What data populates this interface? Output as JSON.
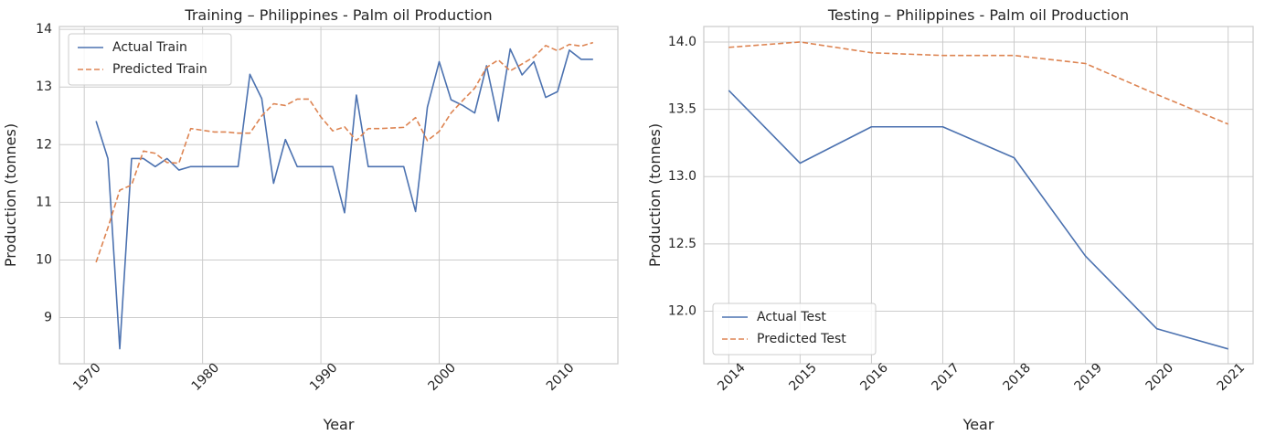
{
  "chart_data": [
    {
      "type": "line",
      "title": "Training – Philippines - Palm oil Production",
      "xlabel": "Year",
      "ylabel": "Production (tonnes)",
      "xlim": [
        1967.9,
        2015.1
      ],
      "ylim": [
        8.2,
        14.05
      ],
      "xticks": [
        1970,
        1980,
        1990,
        2000,
        2010
      ],
      "xtick_labels": [
        "1970",
        "1980",
        "1990",
        "2000",
        "2010"
      ],
      "xtick_rotation": 45,
      "yticks": [
        9,
        10,
        11,
        12,
        13,
        14
      ],
      "ytick_labels": [
        "9",
        "10",
        "11",
        "12",
        "13",
        "14"
      ],
      "grid": true,
      "legend_position": "top-left",
      "x": [
        1971,
        1972,
        1973,
        1974,
        1975,
        1976,
        1977,
        1978,
        1979,
        1980,
        1981,
        1982,
        1983,
        1984,
        1985,
        1986,
        1987,
        1988,
        1989,
        1990,
        1991,
        1992,
        1993,
        1994,
        1995,
        1996,
        1997,
        1998,
        1999,
        2000,
        2001,
        2002,
        2003,
        2004,
        2005,
        2006,
        2007,
        2008,
        2009,
        2010,
        2011,
        2012,
        2013
      ],
      "series": [
        {
          "name": "Actual Train",
          "color": "#4c72b0",
          "dash": "solid",
          "values": [
            12.41,
            11.76,
            8.46,
            11.76,
            11.76,
            11.62,
            11.76,
            11.56,
            11.62,
            11.62,
            11.62,
            11.62,
            11.62,
            13.22,
            12.8,
            11.33,
            12.09,
            11.62,
            11.62,
            11.62,
            11.62,
            10.82,
            12.86,
            11.62,
            11.62,
            11.62,
            11.62,
            10.84,
            12.65,
            13.44,
            12.78,
            12.68,
            12.55,
            13.37,
            12.41,
            13.66,
            13.21,
            13.44,
            12.82,
            12.92,
            13.64,
            13.48,
            13.48
          ]
        },
        {
          "name": "Predicted Train",
          "color": "#dd8452",
          "dash": "dashed",
          "values": [
            9.96,
            10.56,
            11.21,
            11.3,
            11.89,
            11.85,
            11.69,
            11.68,
            12.28,
            12.25,
            12.22,
            12.22,
            12.2,
            12.2,
            12.5,
            12.71,
            12.68,
            12.79,
            12.79,
            12.48,
            12.24,
            12.31,
            12.07,
            12.28,
            12.28,
            12.29,
            12.3,
            12.47,
            12.07,
            12.23,
            12.55,
            12.77,
            12.98,
            13.34,
            13.47,
            13.28,
            13.4,
            13.52,
            13.72,
            13.63,
            13.74,
            13.71,
            13.77
          ]
        }
      ]
    },
    {
      "type": "line",
      "title": "Testing – Philippines - Palm oil Production",
      "xlabel": "Year",
      "ylabel": "Production (tonnes)",
      "xlim": [
        2013.65,
        2021.35
      ],
      "ylim": [
        11.61,
        14.115
      ],
      "xticks": [
        2014,
        2015,
        2016,
        2017,
        2018,
        2019,
        2020,
        2021
      ],
      "xtick_labels": [
        "2014",
        "2015",
        "2016",
        "2017",
        "2018",
        "2019",
        "2020",
        "2021"
      ],
      "xtick_rotation": 45,
      "yticks": [
        12.0,
        12.5,
        13.0,
        13.5,
        14.0
      ],
      "ytick_labels": [
        "12.0",
        "12.5",
        "13.0",
        "13.5",
        "14.0"
      ],
      "grid": true,
      "legend_position": "bottom-left",
      "x": [
        2014,
        2015,
        2016,
        2017,
        2018,
        2019,
        2020,
        2021
      ],
      "series": [
        {
          "name": "Actual Test",
          "color": "#4c72b0",
          "dash": "solid",
          "values": [
            13.64,
            13.1,
            13.37,
            13.37,
            13.14,
            12.41,
            11.87,
            11.72
          ]
        },
        {
          "name": "Predicted Test",
          "color": "#dd8452",
          "dash": "dashed",
          "values": [
            13.96,
            14.0,
            13.92,
            13.9,
            13.9,
            13.84,
            13.61,
            13.39
          ]
        }
      ]
    }
  ]
}
